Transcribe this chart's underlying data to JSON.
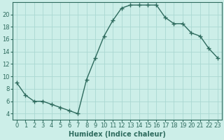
{
  "x": [
    0,
    1,
    2,
    3,
    4,
    5,
    6,
    7,
    8,
    9,
    10,
    11,
    12,
    13,
    14,
    15,
    16,
    17,
    18,
    19,
    20,
    21,
    22,
    23
  ],
  "y": [
    9,
    7,
    6,
    6,
    5.5,
    5,
    4.5,
    4,
    9.5,
    13,
    16.5,
    19,
    21,
    21.5,
    21.5,
    21.5,
    21.5,
    19.5,
    18.5,
    18.5,
    17,
    16.5,
    14.5,
    13
  ],
  "line_color": "#2e6b5e",
  "marker": "+",
  "marker_size": 4,
  "bg_color": "#cceee8",
  "grid_color": "#aad8d2",
  "xlabel": "Humidex (Indice chaleur)",
  "xlim": [
    -0.5,
    23.5
  ],
  "ylim": [
    3,
    22
  ],
  "yticks": [
    4,
    6,
    8,
    10,
    12,
    14,
    16,
    18,
    20
  ],
  "xticks": [
    0,
    1,
    2,
    3,
    4,
    5,
    6,
    7,
    8,
    9,
    10,
    11,
    12,
    13,
    14,
    15,
    16,
    17,
    18,
    19,
    20,
    21,
    22,
    23
  ],
  "tick_label_fontsize": 6,
  "xlabel_fontsize": 7,
  "linewidth": 1.0
}
